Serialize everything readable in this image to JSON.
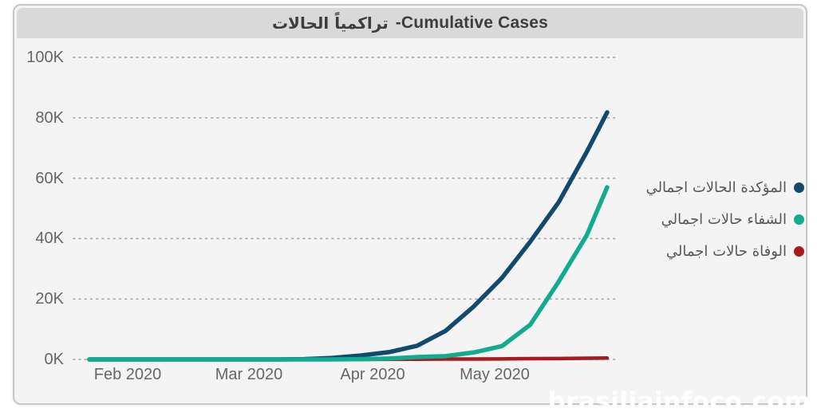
{
  "title": {
    "arabic": "الحالات تراكمياً",
    "english": "-Cumulative Cases"
  },
  "watermark": "brasiliainfoco.com",
  "colors": {
    "card_background": "#f4f4f4",
    "title_bar": "#d9d9d9",
    "grid_dots": "#a9a9a9",
    "axis_text": "#666666",
    "legend_text": "#56575b",
    "title_text": "#3d3d3d"
  },
  "legend": {
    "position": "right"
  },
  "chart_data": {
    "type": "line",
    "title": "الحالات تراكمياً -Cumulative Cases",
    "x_axis": {
      "tick_labels": [
        "Feb 2020",
        "Mar 2020",
        "Apr 2020",
        "May 2020"
      ]
    },
    "y_axis": {
      "tick_labels": [
        "0K",
        "20K",
        "40K",
        "60K",
        "80K",
        "100K"
      ],
      "min": 0,
      "max": 100000
    },
    "grid": {
      "horizontal": true,
      "style": "dotted"
    },
    "legend_position": "right",
    "dates": [
      "Jan 22",
      "Feb 1",
      "Feb 15",
      "Mar 1",
      "Mar 8",
      "Mar 15",
      "Mar 22",
      "Mar 29",
      "Apr 5",
      "Apr 12",
      "Apr 19",
      "Apr 26",
      "May 3",
      "May 10",
      "May 17",
      "May 24",
      "May 29"
    ],
    "days_from_start": [
      0,
      10,
      24,
      39,
      46,
      53,
      60,
      67,
      74,
      81,
      88,
      95,
      102,
      109,
      116,
      123,
      128
    ],
    "series": [
      {
        "name": "اجمالي الحالات المؤكدة",
        "color": "#114a6e",
        "stroke_width": 5.5,
        "values": [
          0,
          0,
          0,
          0,
          0,
          100,
          500,
          1300,
          2400,
          4500,
          9400,
          17500,
          27000,
          39000,
          52000,
          68800,
          81800
        ]
      },
      {
        "name": "اجمالي حالات الشفاء",
        "color": "#13ab8f",
        "stroke_width": 5.5,
        "values": [
          0,
          0,
          0,
          0,
          0,
          0,
          0,
          100,
          300,
          800,
          1100,
          2300,
          4400,
          11500,
          25700,
          41200,
          57000
        ]
      },
      {
        "name": "اجمالي حالات الوفاة",
        "color": "#a91a1e",
        "stroke_width": 4.5,
        "values": [
          0,
          0,
          0,
          0,
          0,
          0,
          0,
          10,
          30,
          80,
          140,
          140,
          180,
          250,
          310,
          390,
          460
        ]
      }
    ]
  }
}
